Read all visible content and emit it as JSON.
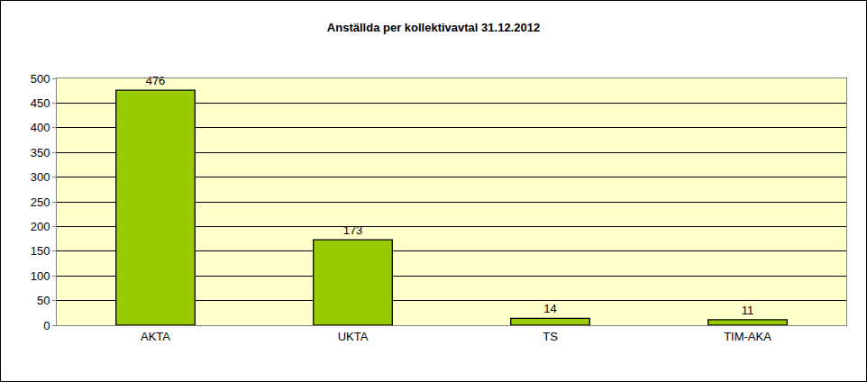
{
  "chart_data": {
    "type": "bar",
    "title": "Anställda per kollektivavtal 31.12.2012",
    "categories": [
      "AKTA",
      "UKTA",
      "TS",
      "TIM-AKA"
    ],
    "values": [
      476,
      173,
      14,
      11
    ],
    "color": "#99cc00",
    "ylim": [
      0,
      500
    ],
    "yticks": [
      0,
      50,
      100,
      150,
      200,
      250,
      300,
      350,
      400,
      450,
      500
    ],
    "grid": true,
    "data_labels": true
  }
}
